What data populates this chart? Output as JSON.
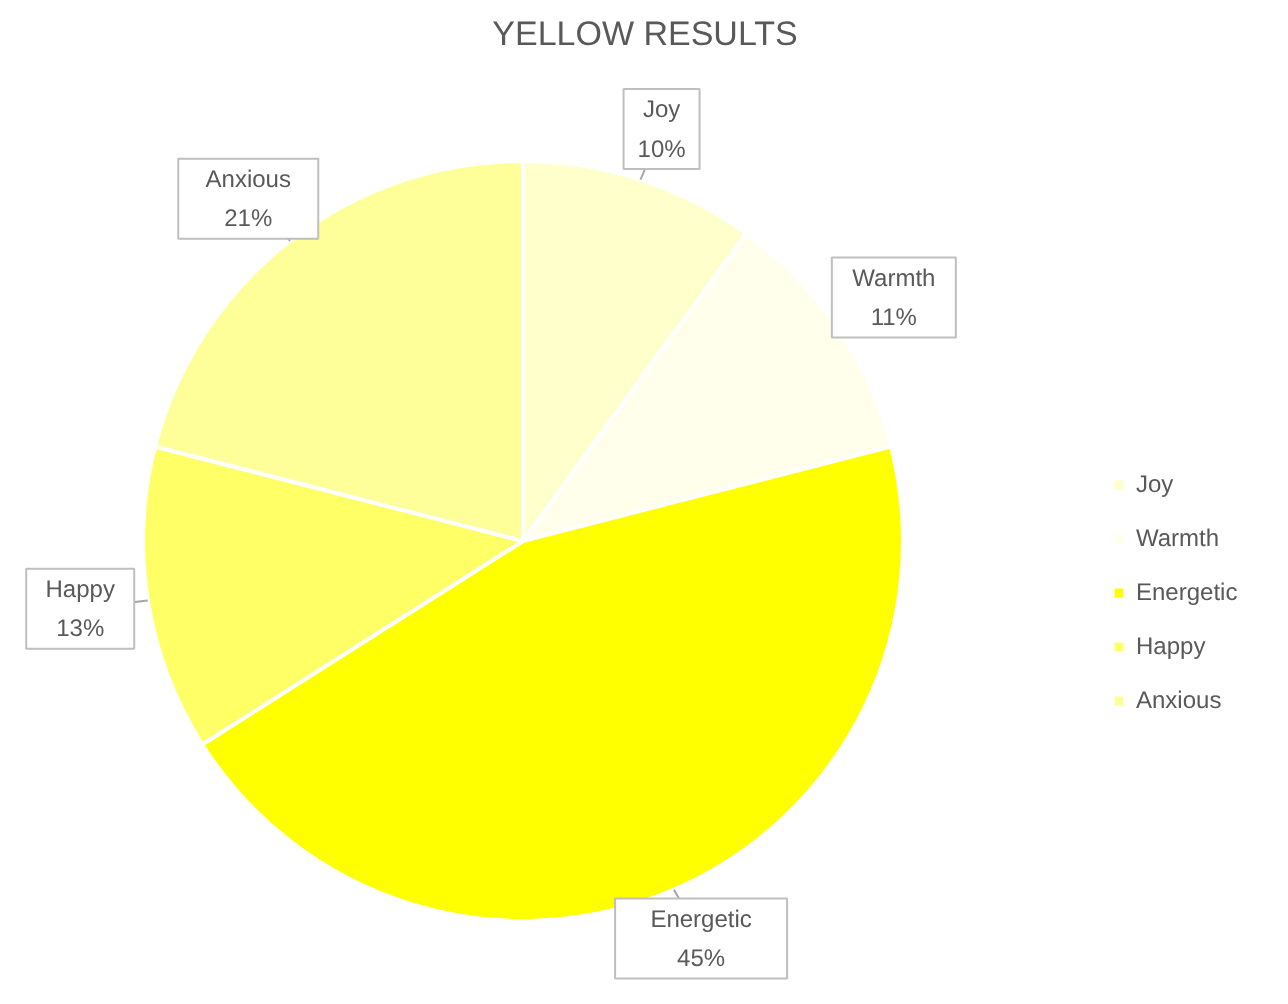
{
  "chart_data": {
    "type": "pie",
    "title": "YELLOW RESULTS",
    "categories": [
      "Joy",
      "Warmth",
      "Energetic",
      "Happy",
      "Anxious"
    ],
    "values": [
      10,
      11,
      45,
      13,
      21
    ],
    "value_labels": [
      "10%",
      "11%",
      "45%",
      "13%",
      "21%"
    ],
    "colors": [
      "#ffffcc",
      "#ffffeb",
      "#ffff00",
      "#ffff66",
      "#ffff99"
    ],
    "legend": "right"
  }
}
